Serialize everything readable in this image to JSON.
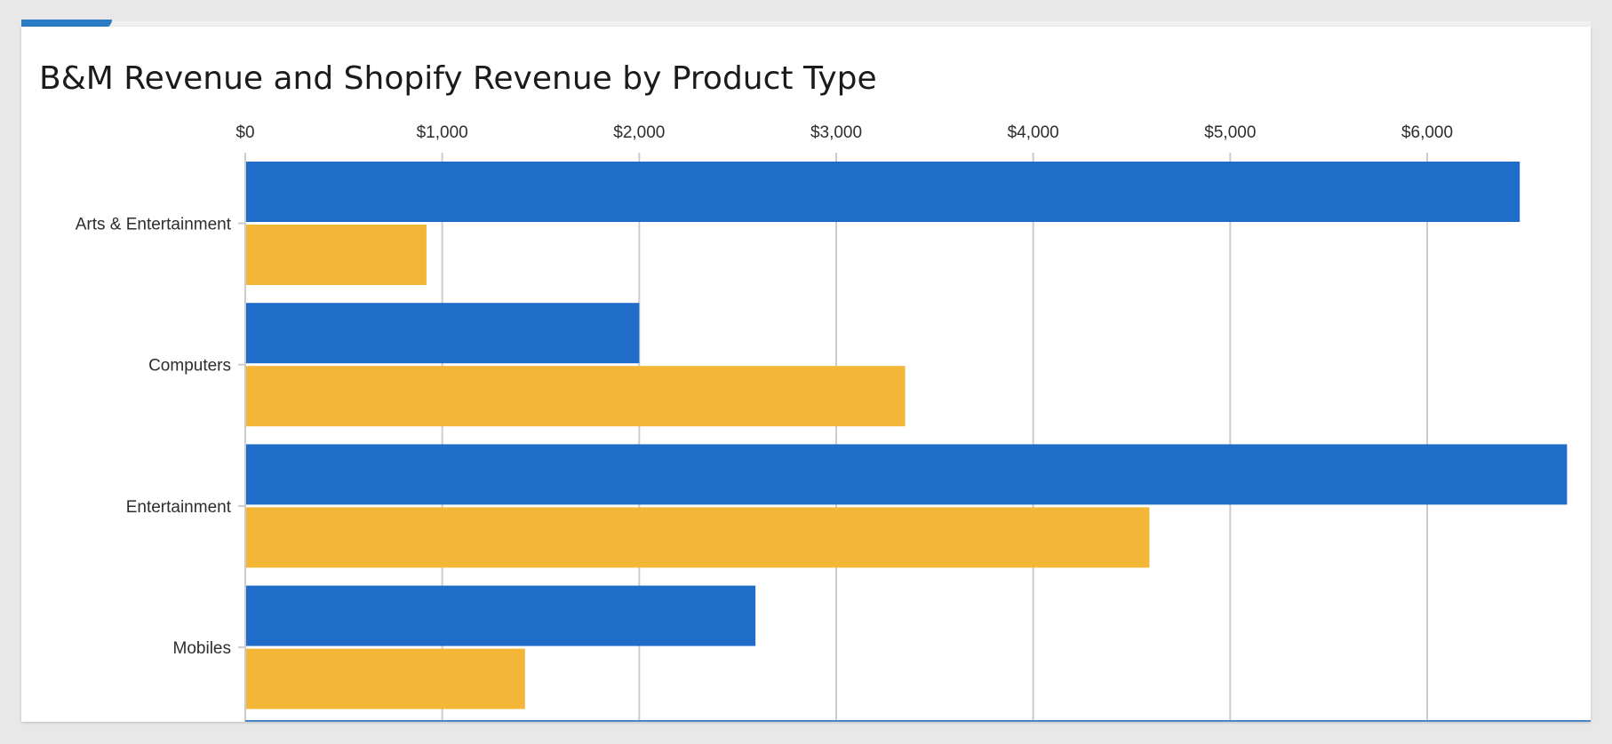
{
  "chart_data": {
    "type": "bar",
    "orientation": "horizontal",
    "title": "B&M Revenue and Shopify Revenue by Product Type",
    "categories": [
      "Arts & Entertainment",
      "Computers",
      "Entertainment",
      "Mobiles"
    ],
    "series": [
      {
        "values": [
          6470,
          2000,
          6710,
          2590
        ],
        "color": "#1f6dc8"
      },
      {
        "values": [
          920,
          3350,
          4590,
          1420
        ],
        "color": "#f4b637"
      }
    ],
    "xlim": [
      0,
      6830
    ],
    "x_ticks": [
      0,
      1000,
      2000,
      3000,
      4000,
      5000,
      6000
    ],
    "x_tick_labels": [
      "$0",
      "$1,000",
      "$2,000",
      "$3,000",
      "$4,000",
      "$5,000",
      "$6,000"
    ],
    "x_axis_position": "top",
    "grid": true,
    "legend": "none"
  },
  "colors": {
    "gridline": "#cccccc",
    "axis_bottom": "#4a86c8",
    "tab_accent": "#2a7cc4"
  }
}
